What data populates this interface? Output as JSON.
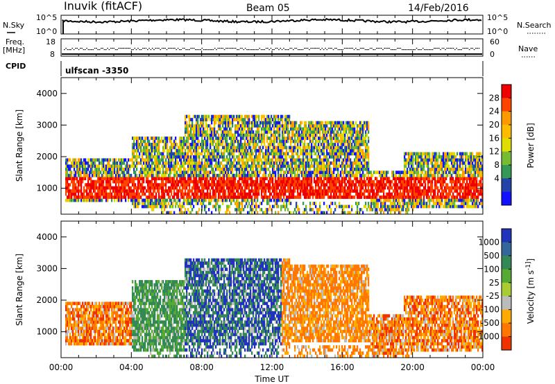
{
  "header": {
    "station": "Inuvik (fitACF)",
    "beam": "Beam 05",
    "date": "14/Feb/2016"
  },
  "noise_panel": {
    "left_label": "N.Sky",
    "right_label": "N.Search",
    "left_ticks": [
      "10^5",
      "10^0"
    ],
    "right_ticks": [
      "10^5",
      "10^0"
    ]
  },
  "freq_panel": {
    "left_label_1": "Freq.",
    "left_label_2": "[MHz]",
    "right_label": "Nave",
    "left_ticks": [
      "18",
      "8"
    ],
    "right_ticks": [
      "60",
      "0"
    ]
  },
  "cpid": {
    "label": "CPID",
    "value": "ulfscan -3350"
  },
  "chart_data": [
    {
      "type": "heatmap",
      "quantity": "Power",
      "xlabel": "",
      "ylabel": "Slant Range [km]",
      "x_range_hours": [
        0,
        24
      ],
      "ylim": [
        180,
        4500
      ],
      "y_ticks": [
        "1000",
        "2000",
        "3000",
        "4000"
      ],
      "colorbar": {
        "label": "Power [dB]",
        "ticks": [
          "28",
          "24",
          "20",
          "16",
          "12",
          "8",
          "4"
        ],
        "colors": [
          "#ee0000",
          "#ff4400",
          "#ff9900",
          "#ffbb00",
          "#dddd00",
          "#77bb33",
          "#339955",
          "#2244aa",
          "#1111ff"
        ]
      }
    },
    {
      "type": "heatmap",
      "quantity": "Velocity",
      "xlabel": "Time UT",
      "ylabel": "Slant Range [km]",
      "x_range_hours": [
        0,
        24
      ],
      "ylim": [
        180,
        4500
      ],
      "y_ticks": [
        "1000",
        "2000",
        "3000",
        "4000"
      ],
      "x_ticks": [
        "00:00",
        "04:00",
        "08:00",
        "12:00",
        "16:00",
        "20:00",
        "00:00"
      ],
      "colorbar": {
        "label": "Velocity [m s^-1]",
        "ticks": [
          "1000",
          "500",
          "100",
          "25",
          "-25",
          "-100",
          "-500",
          "-1000"
        ],
        "colors": [
          "#2233bb",
          "#336699",
          "#338855",
          "#55aa33",
          "#aacc33",
          "#bbbbbb",
          "#ffaa00",
          "#ff7700",
          "#ee3300"
        ]
      }
    }
  ]
}
